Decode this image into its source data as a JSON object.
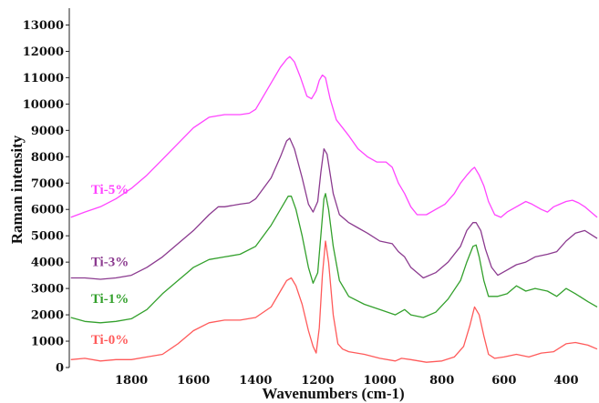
{
  "chart_data": {
    "type": "line",
    "title": "",
    "xlabel": "Wavenumbers (cm-1)",
    "ylabel": "Raman intensity",
    "xlim": [
      2000,
      300
    ],
    "ylim": [
      0,
      13500
    ],
    "x_reversed": true,
    "grid": false,
    "legend": "inline labels",
    "xticks": [
      1800,
      1600,
      1400,
      1200,
      1000,
      800,
      600,
      400
    ],
    "yticks": [
      0,
      1000,
      2000,
      3000,
      4000,
      5000,
      6000,
      7000,
      8000,
      9000,
      10000,
      11000,
      12000,
      13000
    ],
    "series": [
      {
        "name": "Ti-0%",
        "color": "#ff5a5a",
        "label_at": [
          1930,
          900
        ],
        "points": [
          [
            1995,
            300
          ],
          [
            1950,
            350
          ],
          [
            1900,
            250
          ],
          [
            1850,
            300
          ],
          [
            1800,
            300
          ],
          [
            1750,
            400
          ],
          [
            1700,
            500
          ],
          [
            1650,
            900
          ],
          [
            1600,
            1400
          ],
          [
            1550,
            1700
          ],
          [
            1500,
            1800
          ],
          [
            1450,
            1800
          ],
          [
            1400,
            1900
          ],
          [
            1350,
            2300
          ],
          [
            1320,
            2900
          ],
          [
            1300,
            3300
          ],
          [
            1285,
            3400
          ],
          [
            1270,
            3100
          ],
          [
            1250,
            2400
          ],
          [
            1230,
            1400
          ],
          [
            1215,
            800
          ],
          [
            1205,
            550
          ],
          [
            1195,
            1500
          ],
          [
            1185,
            3500
          ],
          [
            1175,
            4800
          ],
          [
            1165,
            4000
          ],
          [
            1150,
            2000
          ],
          [
            1135,
            900
          ],
          [
            1120,
            700
          ],
          [
            1100,
            600
          ],
          [
            1050,
            500
          ],
          [
            1000,
            350
          ],
          [
            950,
            250
          ],
          [
            930,
            350
          ],
          [
            900,
            300
          ],
          [
            850,
            200
          ],
          [
            800,
            250
          ],
          [
            760,
            400
          ],
          [
            730,
            800
          ],
          [
            710,
            1600
          ],
          [
            695,
            2300
          ],
          [
            680,
            2000
          ],
          [
            665,
            1200
          ],
          [
            650,
            500
          ],
          [
            630,
            350
          ],
          [
            600,
            400
          ],
          [
            560,
            500
          ],
          [
            520,
            400
          ],
          [
            480,
            550
          ],
          [
            440,
            600
          ],
          [
            400,
            900
          ],
          [
            370,
            950
          ],
          [
            330,
            850
          ],
          [
            300,
            700
          ]
        ]
      },
      {
        "name": "Ti-1%",
        "color": "#33a02c",
        "label_at": [
          1930,
          2450
        ],
        "points": [
          [
            1995,
            1900
          ],
          [
            1950,
            1750
          ],
          [
            1900,
            1700
          ],
          [
            1850,
            1750
          ],
          [
            1800,
            1850
          ],
          [
            1750,
            2200
          ],
          [
            1700,
            2800
          ],
          [
            1650,
            3300
          ],
          [
            1620,
            3600
          ],
          [
            1600,
            3800
          ],
          [
            1550,
            4100
          ],
          [
            1500,
            4200
          ],
          [
            1450,
            4300
          ],
          [
            1400,
            4600
          ],
          [
            1350,
            5400
          ],
          [
            1320,
            6000
          ],
          [
            1295,
            6500
          ],
          [
            1285,
            6500
          ],
          [
            1270,
            6000
          ],
          [
            1250,
            5000
          ],
          [
            1230,
            3800
          ],
          [
            1215,
            3200
          ],
          [
            1200,
            3600
          ],
          [
            1190,
            5000
          ],
          [
            1180,
            6400
          ],
          [
            1175,
            6600
          ],
          [
            1165,
            6000
          ],
          [
            1150,
            4600
          ],
          [
            1130,
            3300
          ],
          [
            1100,
            2700
          ],
          [
            1050,
            2400
          ],
          [
            1000,
            2200
          ],
          [
            950,
            2000
          ],
          [
            920,
            2200
          ],
          [
            900,
            2000
          ],
          [
            860,
            1900
          ],
          [
            820,
            2100
          ],
          [
            780,
            2600
          ],
          [
            740,
            3300
          ],
          [
            720,
            4000
          ],
          [
            700,
            4600
          ],
          [
            690,
            4650
          ],
          [
            680,
            4200
          ],
          [
            665,
            3300
          ],
          [
            650,
            2700
          ],
          [
            620,
            2700
          ],
          [
            590,
            2800
          ],
          [
            560,
            3100
          ],
          [
            530,
            2900
          ],
          [
            500,
            3000
          ],
          [
            460,
            2900
          ],
          [
            430,
            2700
          ],
          [
            400,
            3000
          ],
          [
            370,
            2800
          ],
          [
            330,
            2500
          ],
          [
            300,
            2300
          ]
        ]
      },
      {
        "name": "Ti-3%",
        "color": "#8b3a8f",
        "label_at": [
          1930,
          3850
        ],
        "points": [
          [
            1995,
            3400
          ],
          [
            1950,
            3400
          ],
          [
            1900,
            3350
          ],
          [
            1850,
            3400
          ],
          [
            1800,
            3500
          ],
          [
            1750,
            3800
          ],
          [
            1700,
            4200
          ],
          [
            1650,
            4700
          ],
          [
            1600,
            5200
          ],
          [
            1550,
            5800
          ],
          [
            1520,
            6100
          ],
          [
            1500,
            6100
          ],
          [
            1450,
            6200
          ],
          [
            1420,
            6250
          ],
          [
            1400,
            6400
          ],
          [
            1350,
            7200
          ],
          [
            1320,
            8000
          ],
          [
            1300,
            8600
          ],
          [
            1290,
            8700
          ],
          [
            1275,
            8300
          ],
          [
            1250,
            7200
          ],
          [
            1230,
            6200
          ],
          [
            1215,
            5900
          ],
          [
            1200,
            6300
          ],
          [
            1190,
            7400
          ],
          [
            1180,
            8300
          ],
          [
            1170,
            8100
          ],
          [
            1150,
            6600
          ],
          [
            1130,
            5800
          ],
          [
            1100,
            5500
          ],
          [
            1070,
            5300
          ],
          [
            1040,
            5100
          ],
          [
            1000,
            4800
          ],
          [
            960,
            4700
          ],
          [
            940,
            4400
          ],
          [
            920,
            4200
          ],
          [
            900,
            3800
          ],
          [
            860,
            3400
          ],
          [
            820,
            3600
          ],
          [
            780,
            4000
          ],
          [
            740,
            4600
          ],
          [
            720,
            5200
          ],
          [
            700,
            5500
          ],
          [
            690,
            5500
          ],
          [
            675,
            5200
          ],
          [
            660,
            4500
          ],
          [
            640,
            3800
          ],
          [
            620,
            3500
          ],
          [
            590,
            3700
          ],
          [
            560,
            3900
          ],
          [
            530,
            4000
          ],
          [
            500,
            4200
          ],
          [
            460,
            4300
          ],
          [
            430,
            4400
          ],
          [
            400,
            4800
          ],
          [
            370,
            5100
          ],
          [
            340,
            5200
          ],
          [
            300,
            4900
          ]
        ]
      },
      {
        "name": "Ti-5%",
        "color": "#ff44ff",
        "label_at": [
          1930,
          6600
        ],
        "points": [
          [
            1995,
            5700
          ],
          [
            1950,
            5900
          ],
          [
            1900,
            6100
          ],
          [
            1850,
            6400
          ],
          [
            1800,
            6800
          ],
          [
            1750,
            7300
          ],
          [
            1700,
            7900
          ],
          [
            1650,
            8500
          ],
          [
            1600,
            9100
          ],
          [
            1550,
            9500
          ],
          [
            1500,
            9600
          ],
          [
            1450,
            9600
          ],
          [
            1420,
            9650
          ],
          [
            1400,
            9800
          ],
          [
            1350,
            10800
          ],
          [
            1320,
            11400
          ],
          [
            1300,
            11700
          ],
          [
            1290,
            11800
          ],
          [
            1275,
            11600
          ],
          [
            1255,
            11000
          ],
          [
            1235,
            10300
          ],
          [
            1220,
            10200
          ],
          [
            1205,
            10500
          ],
          [
            1195,
            10900
          ],
          [
            1185,
            11100
          ],
          [
            1175,
            11000
          ],
          [
            1160,
            10200
          ],
          [
            1140,
            9400
          ],
          [
            1100,
            8800
          ],
          [
            1070,
            8300
          ],
          [
            1040,
            8000
          ],
          [
            1010,
            7800
          ],
          [
            980,
            7800
          ],
          [
            960,
            7600
          ],
          [
            940,
            7000
          ],
          [
            920,
            6600
          ],
          [
            900,
            6100
          ],
          [
            880,
            5800
          ],
          [
            850,
            5800
          ],
          [
            820,
            6000
          ],
          [
            790,
            6200
          ],
          [
            760,
            6600
          ],
          [
            740,
            7000
          ],
          [
            720,
            7300
          ],
          [
            705,
            7500
          ],
          [
            695,
            7600
          ],
          [
            680,
            7300
          ],
          [
            665,
            6900
          ],
          [
            650,
            6300
          ],
          [
            630,
            5800
          ],
          [
            610,
            5700
          ],
          [
            590,
            5900
          ],
          [
            560,
            6100
          ],
          [
            530,
            6300
          ],
          [
            510,
            6200
          ],
          [
            480,
            6000
          ],
          [
            460,
            5900
          ],
          [
            440,
            6100
          ],
          [
            420,
            6200
          ],
          [
            400,
            6300
          ],
          [
            380,
            6350
          ],
          [
            360,
            6250
          ],
          [
            340,
            6100
          ],
          [
            320,
            5900
          ],
          [
            300,
            5700
          ]
        ]
      }
    ]
  }
}
